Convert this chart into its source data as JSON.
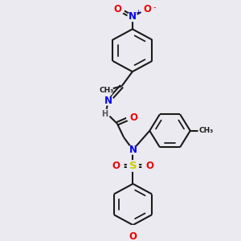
{
  "bg_color": "#eaeaf0",
  "bond_color": "#1a1a1a",
  "bond_width": 1.5,
  "atom_colors": {
    "N": "#0000ee",
    "O": "#ee0000",
    "S": "#cccc00",
    "C": "#1a1a1a",
    "H": "#666666"
  },
  "fig_width": 3.0,
  "fig_height": 3.0,
  "dpi": 100,
  "xlim": [
    0,
    10
  ],
  "ylim": [
    0,
    10
  ]
}
